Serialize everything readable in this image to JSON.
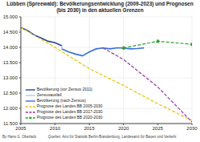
{
  "chart_data": {
    "type": "line",
    "title": "Lübben (Spreewald): Bevölkerungsentwicklung (2009-2023) und Prognosen (bis 2030) in den aktuellen Grenzen",
    "author": "By Hans G. Oberlack",
    "source": "Quellen: Amt für Statistik Berlin-Brandenburg, Landesamt für Bauen und Verkehr",
    "xlim": [
      2005,
      2030
    ],
    "xticks": [
      2005,
      2010,
      2015,
      2020,
      2025,
      2030
    ],
    "ylim": [
      11500,
      15000
    ],
    "yticks": [
      {
        "value": 11500,
        "label": "11.500"
      },
      {
        "value": 12000,
        "label": "12.000"
      },
      {
        "value": 12500,
        "label": "12.500"
      },
      {
        "value": 13000,
        "label": "13.000"
      },
      {
        "value": 13500,
        "label": "13.500"
      },
      {
        "value": 14000,
        "label": "14.000"
      },
      {
        "value": 14500,
        "label": "14.500"
      },
      {
        "value": 15000,
        "label": "15.000"
      }
    ],
    "grid": true,
    "legend": "lower left",
    "series": [
      {
        "name": "Bevölkerung (vor Zensus 2011)",
        "color": "#24479a",
        "line_style": "solid",
        "marker": "none",
        "x": [
          2005,
          2006,
          2007,
          2008,
          2009,
          2010,
          2011
        ],
        "values": [
          14650,
          14550,
          14400,
          14300,
          14200,
          14150,
          14050
        ]
      },
      {
        "name": "Zensusausfall",
        "color": "#a9cdf2",
        "line_style": "solid",
        "marker": "none",
        "x": [
          2011,
          2011
        ],
        "values": [
          14050,
          13950
        ]
      },
      {
        "name": "Bevölkerung (nach Zensus)",
        "color": "#3a6fd8",
        "line_style": "solid",
        "marker": "none",
        "x": [
          2011,
          2012,
          2013,
          2014,
          2015,
          2016,
          2017,
          2018,
          2019,
          2020,
          2021,
          2022,
          2023
        ],
        "values": [
          13950,
          13850,
          13780,
          13720,
          13850,
          13950,
          13980,
          13950,
          13980,
          13980,
          13950,
          13960,
          13980
        ]
      },
      {
        "name": "Prognose des Landes BB 2005-2030",
        "color": "#e6c300",
        "line_style": "dashed",
        "marker": "none",
        "x": [
          2005,
          2010,
          2015,
          2020,
          2025,
          2030
        ],
        "values": [
          14650,
          14000,
          13300,
          12750,
          12150,
          11600
        ]
      },
      {
        "name": "Prognose des Landes BB 2017-2030",
        "color": "#9933aa",
        "line_style": "dashed",
        "marker": "none",
        "x": [
          2017,
          2020,
          2025,
          2030
        ],
        "values": [
          13980,
          13600,
          12700,
          11550
        ]
      },
      {
        "name": "Prognose des Landes BB 2020-2030",
        "color": "#2ca02c",
        "line_style": "dashed",
        "marker": "circle",
        "x": [
          2020,
          2025,
          2030
        ],
        "values": [
          13980,
          14200,
          14100
        ]
      }
    ]
  }
}
